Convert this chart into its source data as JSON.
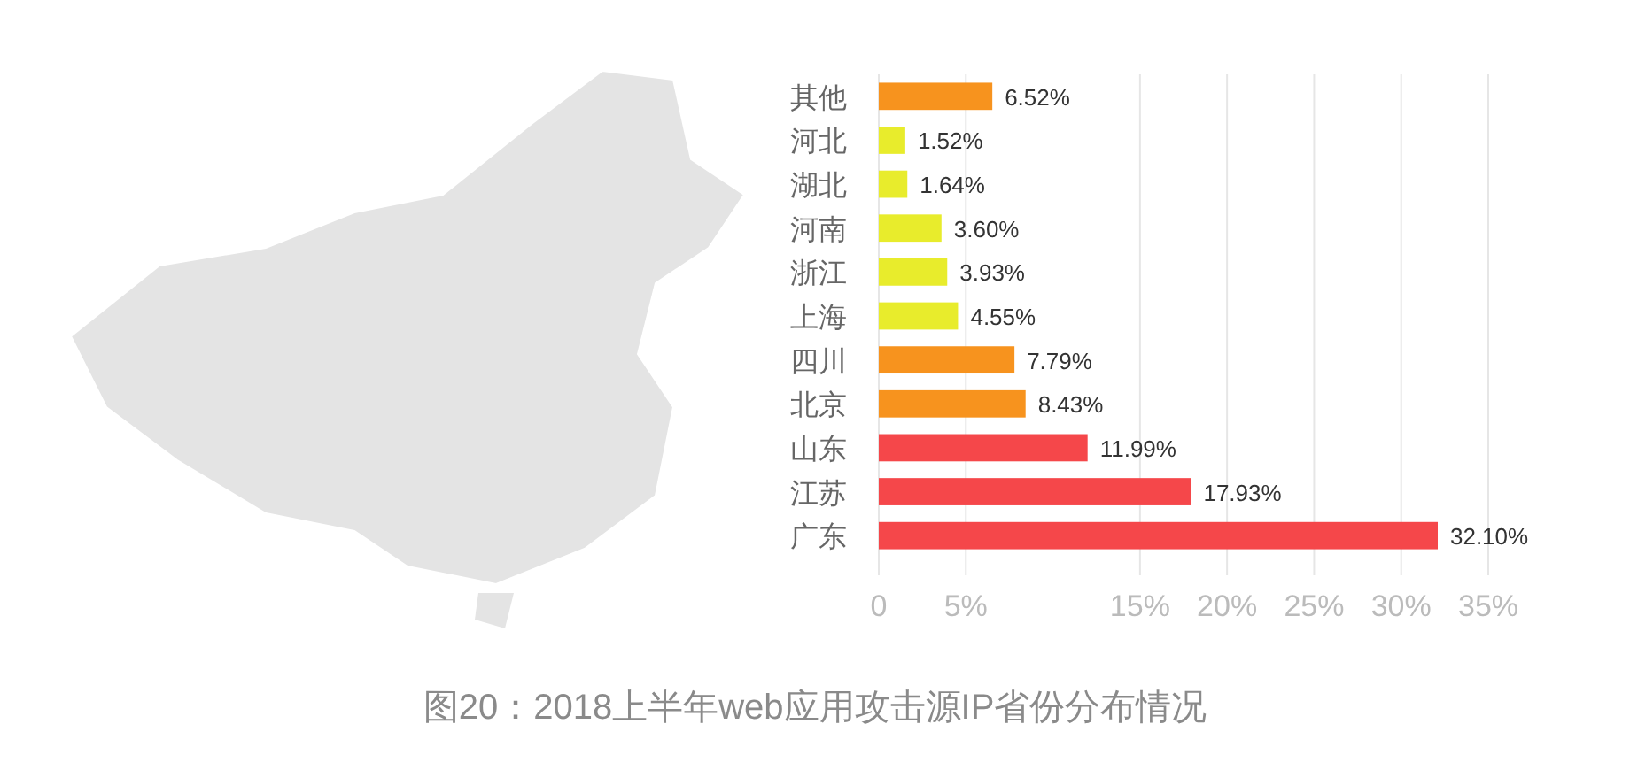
{
  "chart_data": {
    "type": "bar",
    "orientation": "horizontal",
    "title": "图20：2018上半年web应用攻击源IP省份分布情况",
    "categories": [
      "其他",
      "河北",
      "湖北",
      "河南",
      "浙江",
      "上海",
      "四川",
      "北京",
      "山东",
      "江苏",
      "广东"
    ],
    "values": [
      6.52,
      1.52,
      1.64,
      3.6,
      3.93,
      4.55,
      7.79,
      8.43,
      11.99,
      17.93,
      32.1
    ],
    "value_labels": [
      "6.52%",
      "1.52%",
      "1.64%",
      "3.60%",
      "3.93%",
      "4.55%",
      "7.79%",
      "8.43%",
      "11.99%",
      "17.93%",
      "32.10%"
    ],
    "colors": [
      "#f7931e",
      "#e8ec2c",
      "#e8ec2c",
      "#e8ec2c",
      "#e8ec2c",
      "#e8ec2c",
      "#f7931e",
      "#f7931e",
      "#f5474a",
      "#f5474a",
      "#f5474a"
    ],
    "xlim": [
      0,
      35
    ],
    "xticks": [
      0,
      {
        "value": 5,
        "label": "5%"
      },
      {
        "value": 15,
        "label": "15%"
      },
      {
        "value": 20,
        "label": "20%"
      },
      {
        "value": 25,
        "label": "25%"
      },
      {
        "value": 30,
        "label": "30%"
      },
      {
        "value": 35,
        "label": "35%"
      }
    ],
    "grid": "x"
  }
}
